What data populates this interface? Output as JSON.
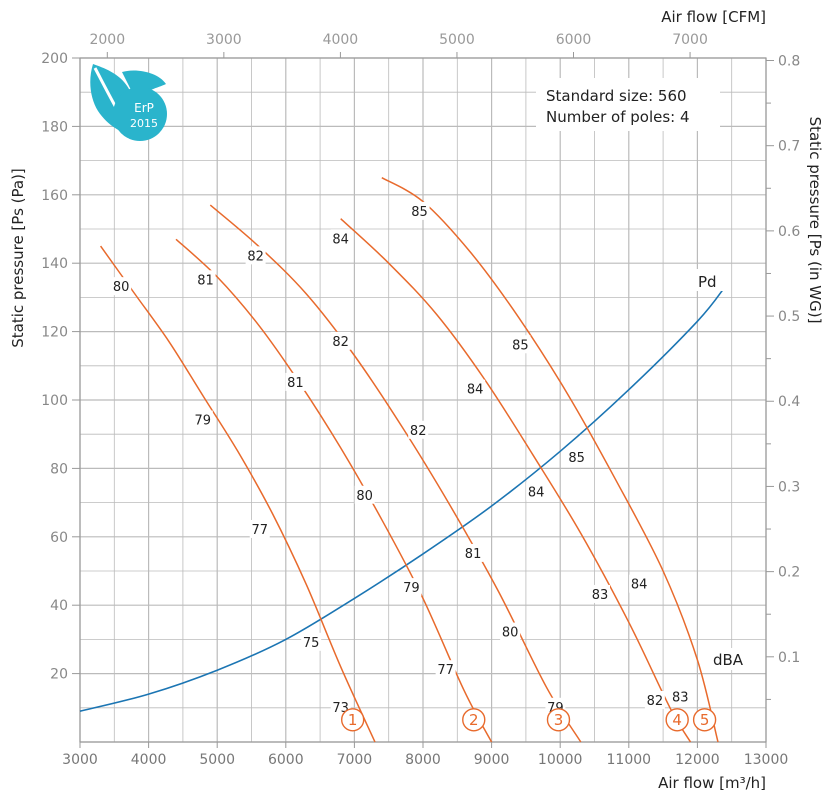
{
  "chart_data": {
    "type": "line",
    "title": "",
    "xlabel": "Air flow [m³/h]",
    "x2label": "Air flow [CFM]",
    "ylabel": "Static pressure [Ps (Pa)]",
    "y2label": "Static pressure [Ps (in WG)]",
    "xlim": [
      3000,
      13000
    ],
    "ylim": [
      0,
      200
    ],
    "x_ticks": [
      3000,
      4000,
      5000,
      6000,
      7000,
      8000,
      9000,
      10000,
      11000,
      12000,
      13000
    ],
    "x2_ticks": [
      2000,
      3000,
      4000,
      5000,
      6000,
      7000
    ],
    "y_ticks": [
      20,
      40,
      60,
      80,
      100,
      120,
      140,
      160,
      180,
      200
    ],
    "y2_ticks": [
      0.1,
      0.2,
      0.3,
      0.4,
      0.5,
      0.6,
      0.7,
      0.8
    ],
    "grid": true,
    "info": {
      "line1": "Standard size: 560",
      "line2": "Number of poles: 4"
    },
    "badge": {
      "top": "ErP",
      "bottom": "2015"
    },
    "pd_label": "Pd",
    "dba_label": "dBA",
    "pd_curve": {
      "name": "Pd",
      "x": [
        3000,
        4000,
        5000,
        6000,
        7000,
        8000,
        9000,
        10000,
        11000,
        12000,
        12400
      ],
      "y": [
        9,
        14,
        21,
        30,
        42,
        55,
        69,
        85,
        103,
        123,
        133
      ]
    },
    "fan_curves": [
      {
        "name": "1",
        "x": [
          3300,
          3800,
          4300,
          4800,
          5300,
          5800,
          6300,
          6800,
          7300
        ],
        "y": [
          145,
          131,
          117,
          101,
          85,
          67,
          46,
          22,
          0
        ],
        "labels": [
          {
            "text": "80",
            "x": 3600,
            "y": 133
          },
          {
            "text": "79",
            "x": 4790,
            "y": 94
          },
          {
            "text": "77",
            "x": 5620,
            "y": 62
          },
          {
            "text": "75",
            "x": 6370,
            "y": 29
          },
          {
            "text": "73",
            "x": 6800,
            "y": 10
          }
        ]
      },
      {
        "name": "2",
        "x": [
          4400,
          5000,
          5600,
          6200,
          6800,
          7400,
          8000,
          8600,
          9000
        ],
        "y": [
          147,
          136,
          122,
          105,
          86,
          65,
          42,
          15,
          0
        ],
        "labels": [
          {
            "text": "81",
            "x": 4830,
            "y": 135
          },
          {
            "text": "81",
            "x": 6140,
            "y": 105
          },
          {
            "text": "80",
            "x": 7150,
            "y": 72
          },
          {
            "text": "79",
            "x": 7830,
            "y": 45
          },
          {
            "text": "77",
            "x": 8330,
            "y": 21
          }
        ]
      },
      {
        "name": "3",
        "x": [
          4900,
          5600,
          6300,
          7000,
          7700,
          8400,
          9100,
          9800,
          10300
        ],
        "y": [
          157,
          145,
          131,
          113,
          92,
          69,
          44,
          16,
          0
        ],
        "labels": [
          {
            "text": "82",
            "x": 5560,
            "y": 142
          },
          {
            "text": "82",
            "x": 6800,
            "y": 117
          },
          {
            "text": "82",
            "x": 7930,
            "y": 91
          },
          {
            "text": "81",
            "x": 8730,
            "y": 55
          },
          {
            "text": "80",
            "x": 9270,
            "y": 32
          },
          {
            "text": "79",
            "x": 9930,
            "y": 10
          }
        ]
      },
      {
        "name": "4",
        "x": [
          6800,
          7500,
          8200,
          8900,
          9600,
          10300,
          11000,
          11600,
          11900
        ],
        "y": [
          153,
          140,
          125,
          106,
          84,
          61,
          35,
          10,
          0
        ],
        "labels": [
          {
            "text": "84",
            "x": 6800,
            "y": 147
          },
          {
            "text": "84",
            "x": 8760,
            "y": 103
          },
          {
            "text": "84",
            "x": 9650,
            "y": 73
          },
          {
            "text": "83",
            "x": 10580,
            "y": 43
          },
          {
            "text": "82",
            "x": 11380,
            "y": 12
          }
        ]
      },
      {
        "name": "5",
        "x": [
          7400,
          8000,
          8700,
          9400,
          10100,
          10800,
          11500,
          12000,
          12300
        ],
        "y": [
          165,
          158,
          143,
          124,
          102,
          77,
          50,
          24,
          0
        ],
        "labels": [
          {
            "text": "85",
            "x": 7950,
            "y": 155
          },
          {
            "text": "85",
            "x": 9420,
            "y": 116
          },
          {
            "text": "85",
            "x": 10240,
            "y": 83
          },
          {
            "text": "84",
            "x": 11150,
            "y": 46
          },
          {
            "text": "83",
            "x": 11750,
            "y": 13
          }
        ]
      }
    ]
  },
  "colors": {
    "fan_curve": "#E86A2C",
    "pd_curve": "#1B75B3",
    "grid": "#BBBBBB",
    "badge": "#2AB4CC"
  }
}
